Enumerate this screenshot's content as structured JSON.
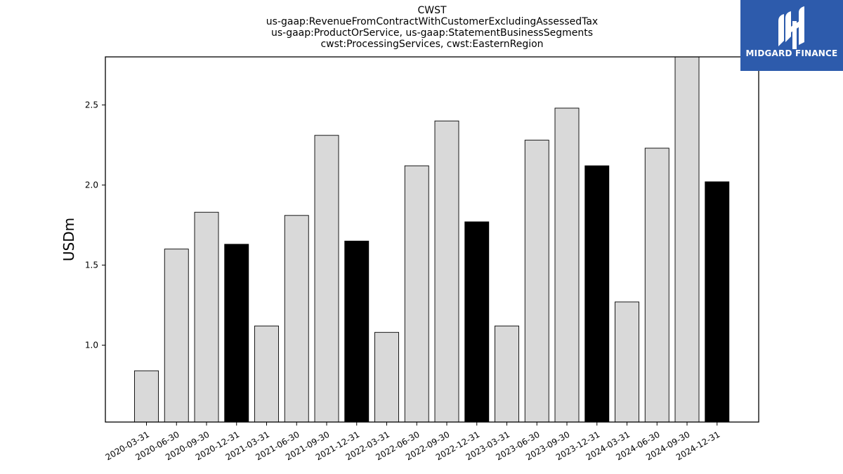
{
  "title_lines": [
    "CWST",
    "us-gaap:RevenueFromContractWithCustomerExcludingAssessedTax",
    "us-gaap:ProductOrService, us-gaap:StatementBusinessSegments",
    "cwst:ProcessingServices, cwst:EasternRegion"
  ],
  "logo": {
    "text": "MIDGARD FINANCE",
    "icon": "midgard-logo-icon",
    "background": "#2d5bac"
  },
  "chart_data": {
    "type": "bar",
    "ylabel": "USDm",
    "xlabel": "",
    "ylim": [
      0.52,
      2.8
    ],
    "yticks": [
      1.0,
      1.5,
      2.0,
      2.5
    ],
    "ytick_labels": [
      "1.0",
      "1.5",
      "2.0",
      "2.5"
    ],
    "grid": false,
    "categories": [
      "2020-03-31",
      "2020-06-30",
      "2020-09-30",
      "2020-12-31",
      "2021-03-31",
      "2021-06-30",
      "2021-09-30",
      "2021-12-31",
      "2022-03-31",
      "2022-06-30",
      "2022-09-30",
      "2022-12-31",
      "2023-03-31",
      "2023-06-30",
      "2023-09-30",
      "2023-12-31",
      "2024-03-31",
      "2024-06-30",
      "2024-09-30",
      "2024-12-31"
    ],
    "values": [
      0.84,
      1.6,
      1.83,
      1.63,
      1.12,
      1.81,
      2.31,
      1.65,
      1.08,
      2.12,
      2.4,
      1.77,
      1.12,
      2.28,
      2.48,
      2.12,
      1.27,
      2.23,
      2.8,
      2.02
    ],
    "colors": {
      "quarter": "#d9d9d9",
      "year_end": "#000000",
      "edge": "#000000"
    },
    "year_end_categories": [
      "2020-12-31",
      "2021-12-31",
      "2022-12-31",
      "2023-12-31",
      "2024-12-31"
    ]
  }
}
